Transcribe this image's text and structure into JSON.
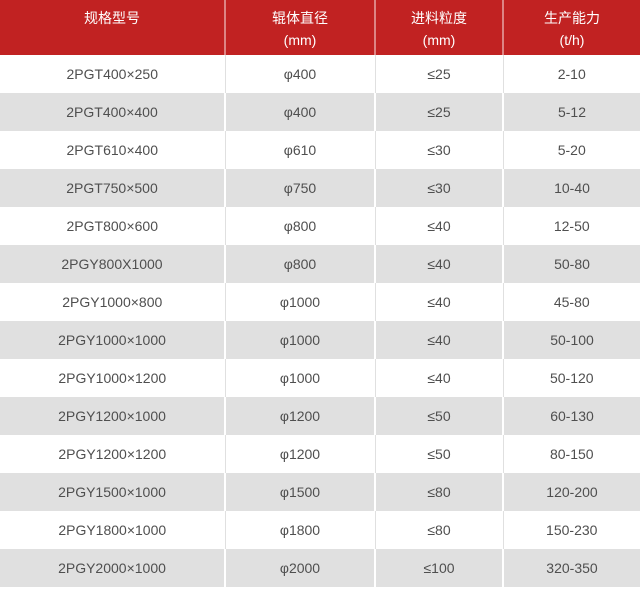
{
  "chart_data": {
    "type": "table",
    "columns": [
      {
        "title": "规格型号",
        "unit": ""
      },
      {
        "title": "辊体直径",
        "unit": "(mm)"
      },
      {
        "title": "进料粒度",
        "unit": "(mm)"
      },
      {
        "title": "生产能力",
        "unit": "(t/h)"
      }
    ],
    "rows": [
      [
        "2PGT400×250",
        "φ400",
        "≤25",
        "2-10"
      ],
      [
        "2PGT400×400",
        "φ400",
        "≤25",
        "5-12"
      ],
      [
        "2PGT610×400",
        "φ610",
        "≤30",
        "5-20"
      ],
      [
        "2PGT750×500",
        "φ750",
        "≤30",
        "10-40"
      ],
      [
        "2PGT800×600",
        "φ800",
        "≤40",
        "12-50"
      ],
      [
        "2PGY800X1000",
        "φ800",
        "≤40",
        "50-80"
      ],
      [
        "2PGY1000×800",
        "φ1000",
        "≤40",
        "45-80"
      ],
      [
        "2PGY1000×1000",
        "φ1000",
        "≤40",
        "50-100"
      ],
      [
        "2PGY1000×1200",
        "φ1000",
        "≤40",
        "50-120"
      ],
      [
        "2PGY1200×1000",
        "φ1200",
        "≤50",
        "60-130"
      ],
      [
        "2PGY1200×1200",
        "φ1200",
        "≤50",
        "80-150"
      ],
      [
        "2PGY1500×1000",
        "φ1500",
        "≤80",
        "120-200"
      ],
      [
        "2PGY1800×1000",
        "φ1800",
        "≤80",
        "150-230"
      ],
      [
        "2PGY2000×1000",
        "φ2000",
        "≤100",
        "320-350"
      ]
    ],
    "layout": {
      "striped": true,
      "header_position": "top",
      "text_align": "center"
    }
  },
  "colors": {
    "header_bg": "#c12222",
    "header_text": "#ffffff",
    "stripe_bg": "#e0e0e0",
    "row_bg": "#ffffff",
    "cell_text": "#4f4f4f",
    "divider_on_white": "#e0e0e0",
    "divider_on_gray": "#ffffff",
    "header_divider": "rgba(255,255,255,0.45)"
  }
}
